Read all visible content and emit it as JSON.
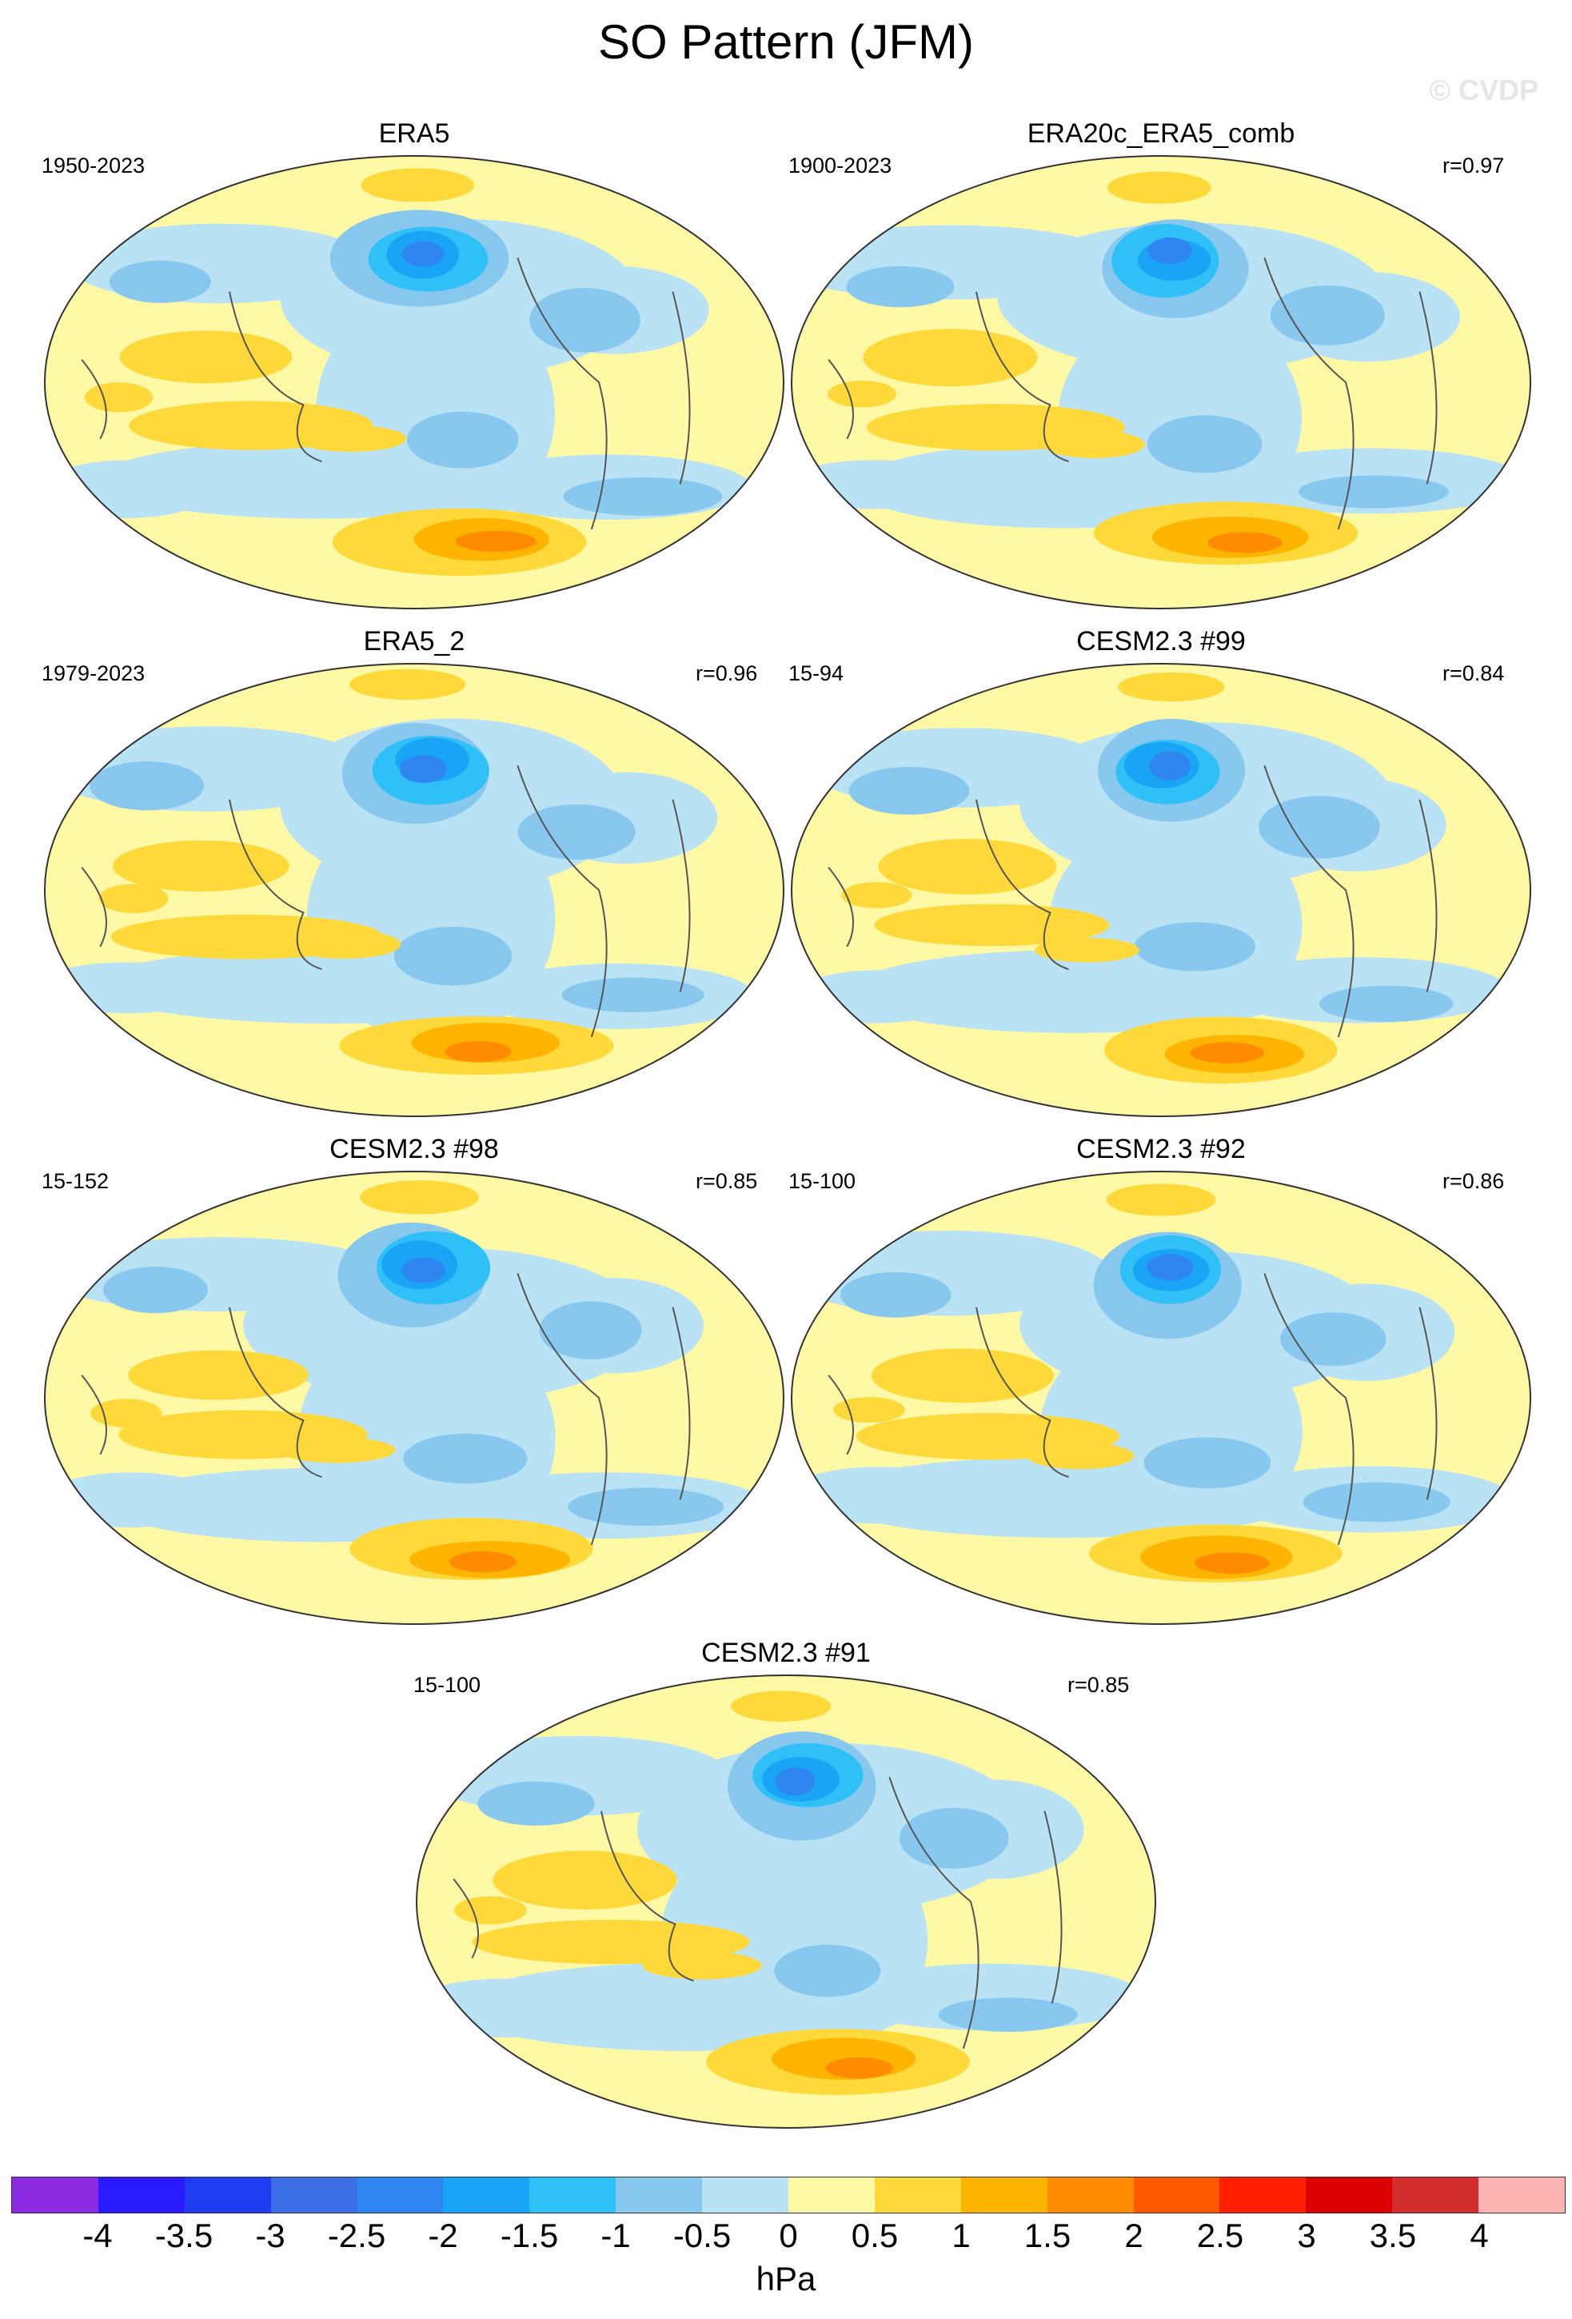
{
  "title": "SO Pattern (JFM)",
  "watermark": "© CVDP",
  "chart_data": {
    "type": "heatmap",
    "projection": "Robinson-like global map, Pacific-centered",
    "panels": [
      {
        "title": "ERA5",
        "period": "1950-2023",
        "correlation": ""
      },
      {
        "title": "ERA20c_ERA5_comb",
        "period": "1900-2023",
        "correlation": "r=0.97"
      },
      {
        "title": "ERA5_2",
        "period": "1979-2023",
        "correlation": "r=0.96"
      },
      {
        "title": "CESM2.3 #99",
        "period": "15-94",
        "correlation": "r=0.84"
      },
      {
        "title": "CESM2.3 #98",
        "period": "15-152",
        "correlation": "r=0.85"
      },
      {
        "title": "CESM2.3 #92",
        "period": "15-100",
        "correlation": "r=0.86"
      },
      {
        "title": "CESM2.3 #91",
        "period": "15-100",
        "correlation": "r=0.85"
      }
    ],
    "colorbar": {
      "labels": [
        "-4",
        "-3.5",
        "-3",
        "-2.5",
        "-2",
        "-1.5",
        "-1",
        "-0.5",
        "0",
        "0.5",
        "1",
        "1.5",
        "2",
        "2.5",
        "3",
        "3.5",
        "4"
      ],
      "colors": [
        "#8a2be2",
        "#2a1aff",
        "#1e3cf0",
        "#3c6ee6",
        "#2f86f0",
        "#1aa4f5",
        "#2ec0f7",
        "#88c8ee",
        "#b9e2f4",
        "#fff9a6",
        "#ffd83a",
        "#ffb400",
        "#ff8c00",
        "#ff5a00",
        "#ff1e00",
        "#dc0000",
        "#d22d2d",
        "#ffb4b4"
      ],
      "units": "hPa"
    }
  }
}
